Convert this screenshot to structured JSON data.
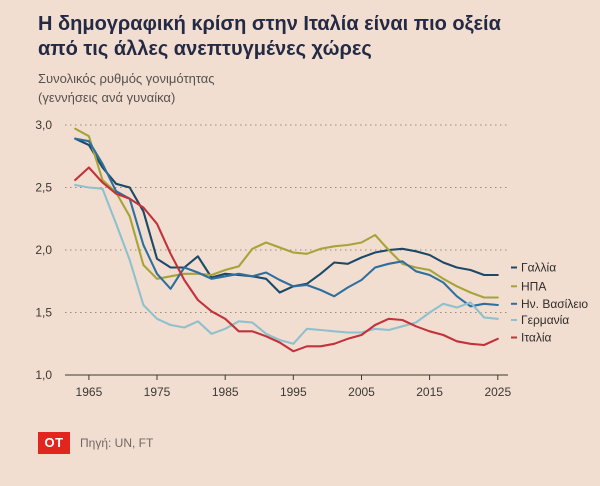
{
  "header": {
    "title_line1": "Η δημογραφική κρίση στην Ιταλία είναι πιο οξεία",
    "title_line2": "από τις άλλες ανεπτυγμένες χώρες",
    "subtitle_line1": "Συνολικός ρυθμός γονιμότητας",
    "subtitle_line2": "(γεννήσεις ανά γυναίκα)"
  },
  "footer": {
    "logo_text": "OT",
    "logo_color": "#e2251f",
    "source": "Πηγή: UN, FT"
  },
  "chart_data": {
    "type": "line",
    "title": "Η δημογραφική κρίση στην Ιταλία είναι πιο οξεία από τις άλλες ανεπτυγμένες χώρες",
    "subtitle": "Συνολικός ρυθμός γονιμότητας (γεννήσεις ανά γυναίκα)",
    "xlabel": "",
    "ylabel": "",
    "xlim": [
      1961.5,
      2026.5
    ],
    "ylim": [
      1.0,
      3.0
    ],
    "yticks": [
      1.0,
      1.5,
      2.0,
      2.5,
      3.0
    ],
    "ytick_labels": [
      "1,0",
      "1,5",
      "2,0",
      "2,5",
      "3,0"
    ],
    "xticks": [
      1965,
      1975,
      1985,
      1995,
      2005,
      2015,
      2025
    ],
    "grid": "horizontal-dotted",
    "legend_position": "right-of-line-ends",
    "x": [
      1963,
      1965,
      1967,
      1969,
      1971,
      1973,
      1975,
      1977,
      1979,
      1981,
      1983,
      1985,
      1987,
      1989,
      1991,
      1993,
      1995,
      1997,
      1999,
      2001,
      2003,
      2005,
      2007,
      2009,
      2011,
      2013,
      2015,
      2017,
      2019,
      2021,
      2023,
      2025
    ],
    "series": [
      {
        "id": "france",
        "name": "Γαλλία",
        "color": "#1c4966",
        "label_y": 1.86,
        "values": [
          2.89,
          2.84,
          2.66,
          2.53,
          2.5,
          2.31,
          1.93,
          1.86,
          1.86,
          1.95,
          1.78,
          1.81,
          1.8,
          1.79,
          1.77,
          1.66,
          1.71,
          1.73,
          1.81,
          1.9,
          1.89,
          1.94,
          1.98,
          2.0,
          2.01,
          1.99,
          1.96,
          1.9,
          1.86,
          1.84,
          1.8,
          1.8
        ]
      },
      {
        "id": "usa",
        "name": "ΗΠΑ",
        "color": "#a8a339",
        "label_y": 1.71,
        "values": [
          2.97,
          2.91,
          2.56,
          2.46,
          2.27,
          1.88,
          1.77,
          1.79,
          1.81,
          1.81,
          1.8,
          1.84,
          1.87,
          2.01,
          2.06,
          2.02,
          1.98,
          1.97,
          2.01,
          2.03,
          2.04,
          2.06,
          2.12,
          2.0,
          1.89,
          1.86,
          1.84,
          1.77,
          1.71,
          1.66,
          1.62,
          1.62
        ]
      },
      {
        "id": "uk",
        "name": "Ην. Βασίλειο",
        "color": "#2d6f9e",
        "label_y": 1.57,
        "values": [
          2.89,
          2.87,
          2.69,
          2.47,
          2.41,
          2.04,
          1.81,
          1.69,
          1.86,
          1.82,
          1.77,
          1.79,
          1.81,
          1.79,
          1.82,
          1.76,
          1.71,
          1.72,
          1.68,
          1.63,
          1.7,
          1.76,
          1.86,
          1.89,
          1.91,
          1.83,
          1.8,
          1.74,
          1.63,
          1.55,
          1.57,
          1.56
        ]
      },
      {
        "id": "germany",
        "name": "Γερμανία",
        "color": "#8ec0cd",
        "label_y": 1.44,
        "values": [
          2.52,
          2.5,
          2.49,
          2.21,
          1.92,
          1.56,
          1.45,
          1.4,
          1.38,
          1.43,
          1.33,
          1.37,
          1.43,
          1.42,
          1.33,
          1.28,
          1.25,
          1.37,
          1.36,
          1.35,
          1.34,
          1.34,
          1.37,
          1.36,
          1.39,
          1.42,
          1.5,
          1.57,
          1.54,
          1.58,
          1.46,
          1.45
        ]
      },
      {
        "id": "italy",
        "name": "Ιταλία",
        "color": "#c2323b",
        "label_y": 1.3,
        "values": [
          2.56,
          2.66,
          2.54,
          2.45,
          2.41,
          2.34,
          2.21,
          1.97,
          1.76,
          1.6,
          1.51,
          1.45,
          1.35,
          1.35,
          1.31,
          1.26,
          1.19,
          1.23,
          1.23,
          1.25,
          1.29,
          1.32,
          1.4,
          1.45,
          1.44,
          1.39,
          1.35,
          1.32,
          1.27,
          1.25,
          1.24,
          1.29
        ]
      }
    ]
  }
}
